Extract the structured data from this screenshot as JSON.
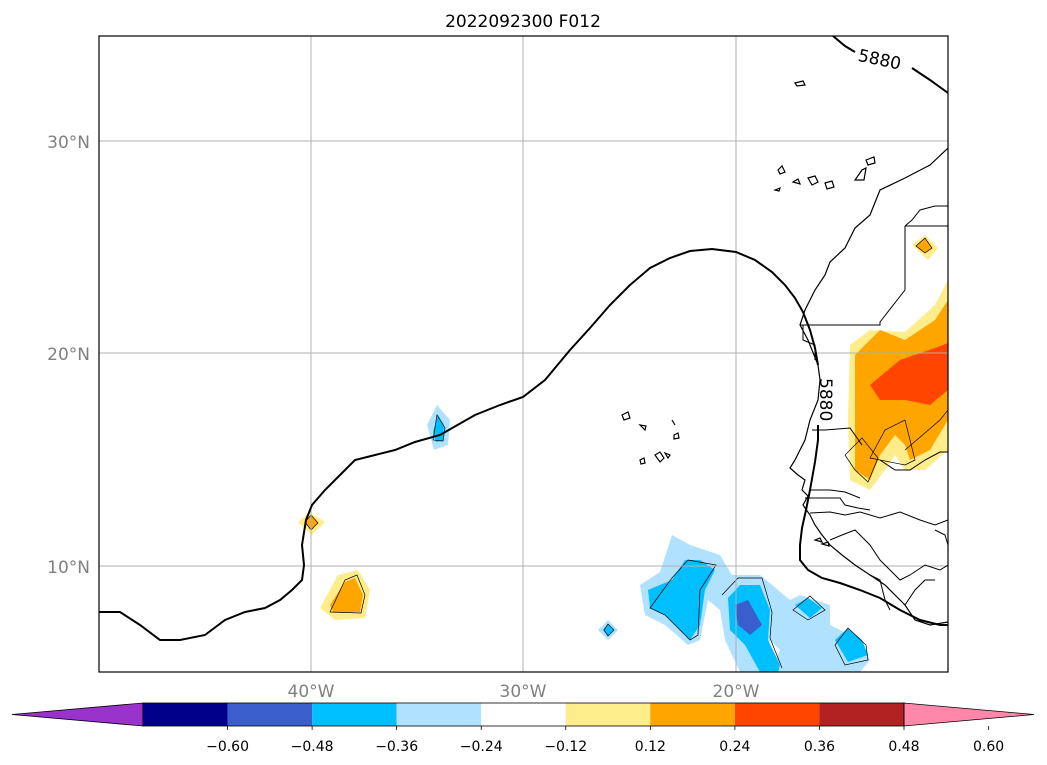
{
  "title": "2022092300 F012",
  "contour_label": "5880",
  "lat_ticks": [
    {
      "label": "30°N",
      "value": 30
    },
    {
      "label": "20°N",
      "value": 20
    },
    {
      "label": "10°N",
      "value": 10
    }
  ],
  "lon_ticks": [
    {
      "label": "40°W",
      "value": -40
    },
    {
      "label": "30°W",
      "value": -30
    },
    {
      "label": "20°W",
      "value": -20
    }
  ],
  "colorbar": {
    "colors": [
      "#9933cc",
      "#00008b",
      "#3a5fcd",
      "#00bfff",
      "#b0e2ff",
      "#ffffff",
      "#ffec8b",
      "#ffa500",
      "#ff4500",
      "#b22222",
      "#ff88aa"
    ],
    "labels": [
      "−0.60",
      "−0.48",
      "−0.36",
      "−0.24",
      "−0.12",
      "0.12",
      "0.24",
      "0.36",
      "0.48",
      "0.60"
    ]
  },
  "colors": {
    "light_yellow": "#ffec8b",
    "orange": "#ffa500",
    "red_orange": "#ff4500",
    "deep_sky_blue": "#00bfff",
    "light_blue": "#b0e2ff",
    "royal_blue": "#3a5fcd"
  }
}
